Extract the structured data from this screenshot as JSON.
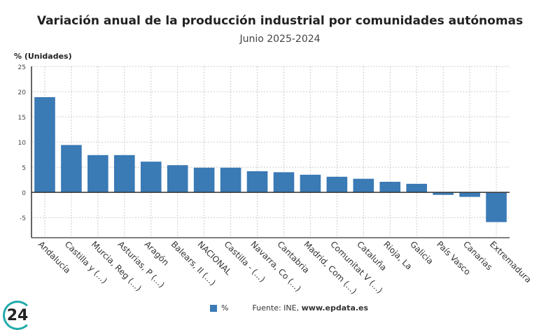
{
  "chart_data": {
    "type": "bar",
    "title": "Variación anual de la producción industrial por comunidades autónomas",
    "subtitle": "Junio 2025-2024",
    "ylabel": "% (Unidades)",
    "ylim": [
      -9,
      25
    ],
    "yticks": [
      -5,
      0,
      5,
      10,
      15,
      20,
      25
    ],
    "grid": true,
    "categories": [
      "Andalucía",
      "Castilla y (...)",
      "Murcia, Reg (...)",
      "Asturias, P (...)",
      "Aragón",
      "Balears, Il (...)",
      "NACIONAL",
      "Castilla - (...)",
      "Navarra, Co (...)",
      "Cantabria",
      "Madrid, Com (...)",
      "Comunitat V (...)",
      "Cataluña",
      "Rioja, La",
      "Galicia",
      "País Vasco",
      "Canarias",
      "Extremadura"
    ],
    "series": [
      {
        "name": "%",
        "values": [
          18.9,
          9.4,
          7.4,
          7.4,
          6.1,
          5.4,
          4.9,
          4.9,
          4.2,
          4.0,
          3.5,
          3.1,
          2.7,
          2.1,
          1.7,
          -0.5,
          -0.9,
          -5.9
        ]
      }
    ],
    "color": "#3a7ab5",
    "legend_position": "bottom"
  },
  "source": {
    "prefix": "Fuente: INE, ",
    "site": "www.epdata.es"
  },
  "logo": "24"
}
